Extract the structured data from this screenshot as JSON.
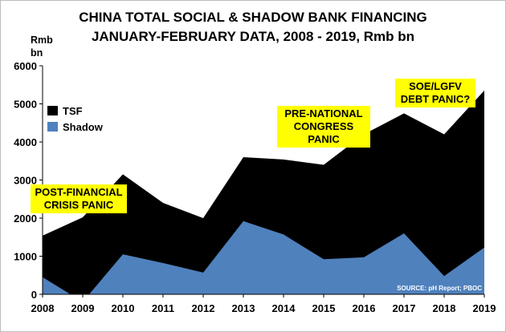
{
  "chart_data": {
    "type": "area",
    "title": "CHINA TOTAL SOCIAL & SHADOW BANK FINANCING",
    "subtitle": "JANUARY-FEBRUARY DATA, 2008 - 2019, Rmb bn",
    "ylabel_line1": "Rmb",
    "ylabel_line2": "bn",
    "x": [
      "2008",
      "2009",
      "2010",
      "2011",
      "2012",
      "2013",
      "2014",
      "2015",
      "2016",
      "2017",
      "2018",
      "2019"
    ],
    "yticks": [
      "0",
      "1000",
      "2000",
      "3000",
      "4000",
      "5000",
      "6000"
    ],
    "ylim": [
      0,
      6000
    ],
    "grid": false,
    "legend_position": "top-left",
    "series": [
      {
        "name": "TSF",
        "color": "#000000",
        "values": [
          1540,
          2020,
          3150,
          2400,
          2000,
          3600,
          3540,
          3400,
          4200,
          4750,
          4200,
          5350
        ]
      },
      {
        "name": "Shadow",
        "color": "#4f81bd",
        "values": [
          450,
          -200,
          1050,
          820,
          570,
          1920,
          1570,
          920,
          970,
          1600,
          480,
          1230
        ]
      }
    ],
    "annotations": [
      {
        "line1": "POST-FINANCIAL",
        "line2": "CRISIS PANIC"
      },
      {
        "line1": "PRE-NATIONAL",
        "line2": "CONGRESS",
        "line3": "PANIC"
      },
      {
        "line1": "SOE/LGFV",
        "line2": "DEBT PANIC?"
      }
    ],
    "source": "SOURCE: pH Report; PBOC"
  }
}
